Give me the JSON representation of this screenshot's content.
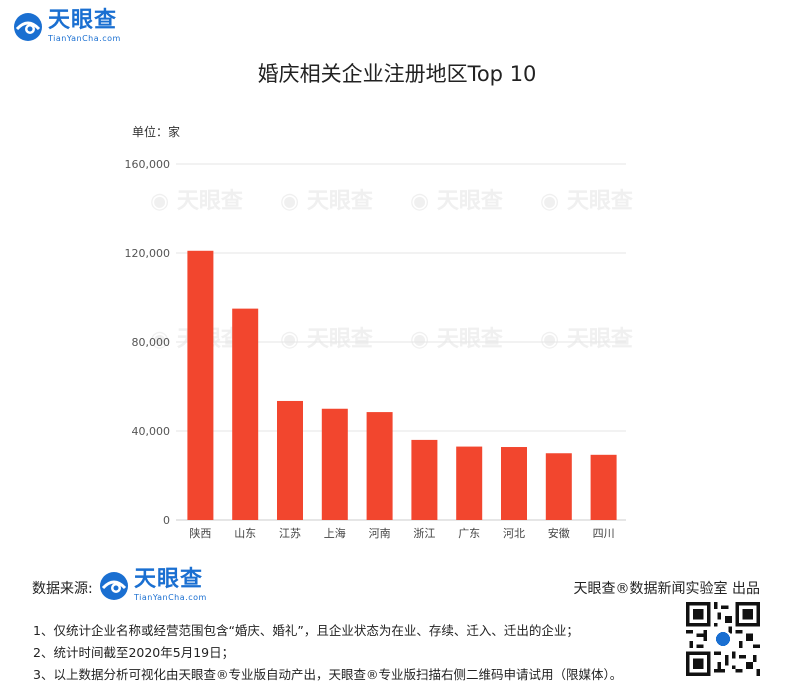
{
  "brand": {
    "name_cn": "天眼查",
    "name_en": "TianYanCha.com"
  },
  "chart_data": {
    "type": "bar",
    "title": "婚庆相关企业注册地区Top 10",
    "unit_label": "单位：家",
    "categories": [
      "陕西",
      "山东",
      "江苏",
      "上海",
      "河南",
      "浙江",
      "广东",
      "河北",
      "安徽",
      "四川"
    ],
    "values": [
      121000,
      95000,
      53500,
      50000,
      48500,
      36000,
      33000,
      32800,
      30000,
      29300
    ],
    "ylim": [
      0,
      160000
    ],
    "yticks": [
      0,
      40000,
      80000,
      120000,
      160000
    ],
    "ytick_labels": [
      "0",
      "40,000",
      "80,000",
      "120,000",
      "160,000"
    ],
    "grid": true,
    "bar_color": "#f2462e",
    "watermark": "天眼查"
  },
  "footer": {
    "source_label": "数据来源:",
    "credit": "天眼查®数据新闻实验室 出品",
    "notes": [
      "1、仅统计企业名称或经营范围包含“婚庆、婚礼”，且企业状态为在业、存续、迁入、迁出的企业；",
      "2、统计时间截至2020年5月19日；",
      "3、以上数据分析可视化由天眼查®专业版自动产出，天眼查®专业版扫描右侧二维码申请试用（限媒体）。"
    ]
  },
  "colors": {
    "brand_blue": "#1a6fd1",
    "grid": "#e6e6e6",
    "axis_text": "#555555"
  }
}
